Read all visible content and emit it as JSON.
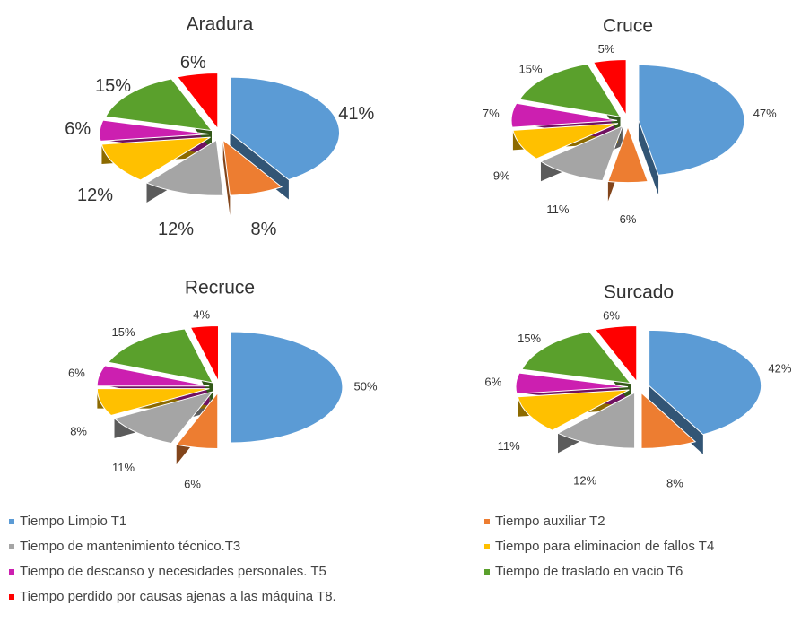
{
  "legend": {
    "categories": [
      "Tiempo Limpio T1",
      "Tiempo auxiliar T2",
      "Tiempo de mantenimiento técnico.T3",
      "Tiempo para eliminacion de fallos T4",
      "Tiempo de descanso y necesidades personales. T5",
      "Tiempo de traslado en vacio T6",
      "Tiempo perdido por causas ajenas a las máquina T8."
    ],
    "colors": [
      "#5b9bd5",
      "#ed7d31",
      "#a5a5a5",
      "#ffc000",
      "#cc1fb0",
      "#5aa02c",
      "#ff0000"
    ]
  },
  "chart_data": [
    {
      "type": "pie",
      "title": "Aradura",
      "values": [
        41,
        8,
        12,
        12,
        6,
        15,
        6
      ],
      "value_labels": [
        "41%",
        "8%",
        "12%",
        "12%",
        "6%",
        "15%",
        "6%"
      ]
    },
    {
      "type": "pie",
      "title": "Cruce",
      "values": [
        47,
        6,
        11,
        9,
        7,
        15,
        5
      ],
      "value_labels": [
        "47%",
        "6%",
        "11%",
        "9%",
        "7%",
        "15%",
        "5%"
      ]
    },
    {
      "type": "pie",
      "title": "Recruce",
      "values": [
        50,
        6,
        11,
        8,
        6,
        15,
        4
      ],
      "value_labels": [
        "50%",
        "6%",
        "11%",
        "8%",
        "6%",
        "15%",
        "4%"
      ]
    },
    {
      "type": "pie",
      "title": "Surcado",
      "values": [
        42,
        8,
        12,
        11,
        6,
        15,
        6
      ],
      "value_labels": [
        "42%",
        "8%",
        "12%",
        "11%",
        "6%",
        "15%",
        "6%"
      ]
    }
  ]
}
